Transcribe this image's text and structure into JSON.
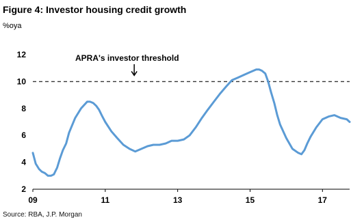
{
  "figure": {
    "title": "Figure 4: Investor housing credit growth",
    "unit": "%oya",
    "source": "Source: RBA, J.P. Morgan"
  },
  "chart_data": {
    "type": "line",
    "title": "Figure 4: Investor housing credit growth",
    "ylabel": "%oya",
    "xlabel": "",
    "ylim": [
      2,
      12
    ],
    "xlim": [
      2009.0,
      2017.75
    ],
    "yticks": [
      "2",
      "4",
      "6",
      "8",
      "10",
      "12"
    ],
    "xticks": [
      {
        "value": 2009,
        "label": "09"
      },
      {
        "value": 2011,
        "label": "11"
      },
      {
        "value": 2013,
        "label": "13"
      },
      {
        "value": 2015,
        "label": "15"
      },
      {
        "value": 2017,
        "label": "17"
      }
    ],
    "grid": false,
    "legend": "none",
    "line_color": "#5b9bd5",
    "series": [
      {
        "x": [
          2009.0,
          2009.08,
          2009.17,
          2009.25,
          2009.33,
          2009.42,
          2009.5,
          2009.58,
          2009.67,
          2009.75,
          2009.83,
          2009.92,
          2010.0,
          2010.17,
          2010.33,
          2010.5,
          2010.58,
          2010.67,
          2010.75,
          2010.83,
          2010.92,
          2011.0,
          2011.17,
          2011.33,
          2011.5,
          2011.67,
          2011.83,
          2012.0,
          2012.17,
          2012.33,
          2012.5,
          2012.67,
          2012.83,
          2013.0,
          2013.17,
          2013.33,
          2013.5,
          2013.67,
          2013.83,
          2014.0,
          2014.17,
          2014.33,
          2014.5,
          2014.67,
          2014.83,
          2015.0,
          2015.17,
          2015.25,
          2015.33,
          2015.42,
          2015.5,
          2015.58,
          2015.67,
          2015.75,
          2015.83,
          2016.0,
          2016.17,
          2016.33,
          2016.42,
          2016.5,
          2016.58,
          2016.67,
          2016.83,
          2017.0,
          2017.17,
          2017.33,
          2017.5,
          2017.67,
          2017.75
        ],
        "y": [
          4.7,
          3.9,
          3.5,
          3.3,
          3.2,
          3.0,
          3.0,
          3.1,
          3.6,
          4.3,
          4.9,
          5.4,
          6.2,
          7.3,
          8.0,
          8.5,
          8.5,
          8.4,
          8.2,
          7.9,
          7.4,
          7.0,
          6.3,
          5.8,
          5.3,
          5.0,
          4.8,
          5.0,
          5.2,
          5.3,
          5.3,
          5.4,
          5.6,
          5.6,
          5.7,
          6.0,
          6.6,
          7.3,
          7.9,
          8.5,
          9.1,
          9.6,
          10.1,
          10.3,
          10.5,
          10.7,
          10.9,
          10.9,
          10.8,
          10.6,
          10.0,
          9.2,
          8.4,
          7.5,
          6.8,
          5.8,
          5.0,
          4.7,
          4.6,
          4.9,
          5.4,
          5.9,
          6.6,
          7.2,
          7.4,
          7.5,
          7.3,
          7.2,
          7.0
        ]
      }
    ],
    "reference_lines": [
      {
        "y": 10,
        "style": "dashed",
        "label": "APRA's investor threshold"
      }
    ],
    "annotations": [
      {
        "text": "APRA's investor threshold",
        "arrow_to": {
          "x": 2011.8,
          "y": 10
        }
      }
    ]
  }
}
